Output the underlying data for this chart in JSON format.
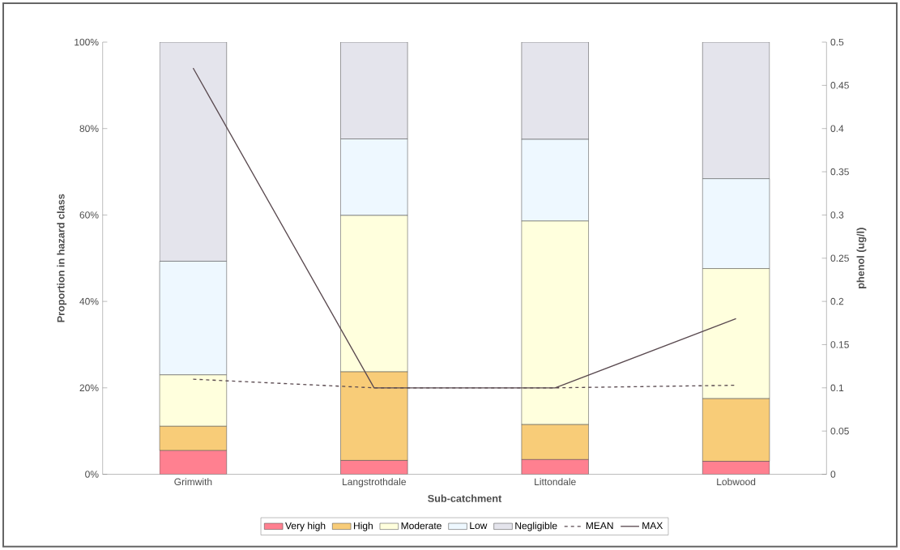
{
  "chart_data": {
    "type": "bar",
    "stacked": true,
    "xlabel": "Sub-catchment",
    "ylabel": "Proportion in hazard class",
    "y2label": "phenol (ug/l)",
    "categories": [
      "Grimwith",
      "Langstrothdale",
      "Littondale",
      "Lobwood"
    ],
    "series": [
      {
        "name": "Very high",
        "color": "#ff8090",
        "values": [
          5.5,
          3.2,
          3.4,
          3.0
        ]
      },
      {
        "name": "High",
        "color": "#f8cc78",
        "values": [
          5.6,
          20.5,
          8.1,
          14.5
        ]
      },
      {
        "name": "Moderate",
        "color": "#ffffdd",
        "values": [
          11.9,
          36.2,
          47.1,
          30.1
        ]
      },
      {
        "name": "Low",
        "color": "#eef8ff",
        "values": [
          26.3,
          17.7,
          18.9,
          20.8
        ]
      },
      {
        "name": "Negligible",
        "color": "#e4e4ec",
        "values": [
          50.7,
          22.4,
          22.5,
          31.6
        ]
      },
      {
        "name": "MEAN",
        "type": "line",
        "axis": "y2",
        "color": "#5a4a50",
        "line_style": "dashed",
        "values": [
          0.11,
          0.1,
          0.1,
          0.103
        ]
      },
      {
        "name": "MAX",
        "type": "line",
        "axis": "y2",
        "color": "#5a4a50",
        "line_style": "solid",
        "values": [
          0.47,
          0.1,
          0.1,
          0.18
        ]
      }
    ],
    "ylim": [
      0,
      100
    ],
    "yticks": [
      {
        "value": 0,
        "label": "0%"
      },
      {
        "value": 20,
        "label": "20%"
      },
      {
        "value": 40,
        "label": "40%"
      },
      {
        "value": 60,
        "label": "60%"
      },
      {
        "value": 80,
        "label": "80%"
      },
      {
        "value": 100,
        "label": "100%"
      }
    ],
    "y2lim": [
      0,
      0.5
    ],
    "y2ticks": [
      0,
      0.05,
      0.1,
      0.15,
      0.2,
      0.25,
      0.3,
      0.35,
      0.4,
      0.45,
      0.5
    ],
    "grid": false,
    "legend": "bottom",
    "marker": "none"
  }
}
